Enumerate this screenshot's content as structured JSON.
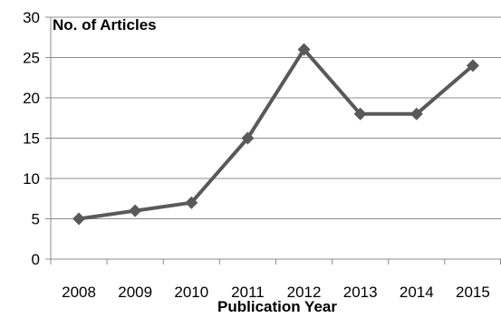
{
  "chart_data": {
    "type": "line",
    "title": "",
    "ylabel": "No. of Articles",
    "xlabel": "Publication Year",
    "categories": [
      "2008",
      "2009",
      "2010",
      "2011",
      "2012",
      "2013",
      "2014",
      "2015"
    ],
    "series": [
      {
        "values": [
          5,
          6,
          7,
          15,
          26,
          18,
          18,
          24
        ]
      }
    ],
    "ylim": [
      0,
      30
    ],
    "yticks": [
      0,
      5,
      10,
      15,
      20,
      25,
      30
    ],
    "grid": true,
    "legend": "none",
    "marker": "diamond",
    "colors": {
      "line": "#595959",
      "grid": "#8c8c8c",
      "axis": "#8c8c8c"
    }
  }
}
